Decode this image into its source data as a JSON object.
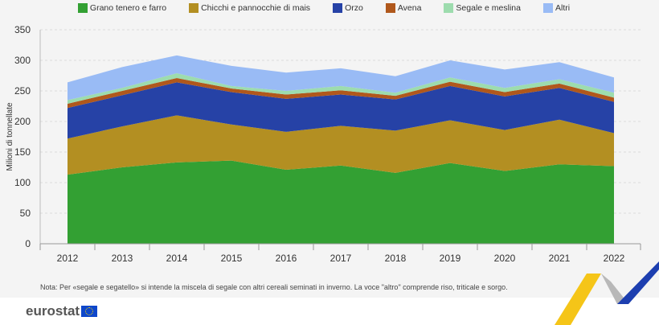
{
  "chart_data": {
    "type": "area",
    "stacked": true,
    "categories": [
      "2012",
      "2013",
      "2014",
      "2015",
      "2016",
      "2017",
      "2018",
      "2019",
      "2020",
      "2021",
      "2022"
    ],
    "ylabel": "Milioni di tonnellate",
    "ylim": [
      0,
      350
    ],
    "yticks": [
      0,
      50,
      100,
      150,
      200,
      250,
      300,
      350
    ],
    "grid": true,
    "legend": "top",
    "series": [
      {
        "name": "Grano tenero e farro",
        "color": "#33a033",
        "values": [
          113,
          125,
          133,
          136,
          121,
          128,
          116,
          132,
          119,
          130,
          127
        ]
      },
      {
        "name": "Chicchi e pannocchie di mais",
        "color": "#b38f22",
        "values": [
          59,
          67,
          77,
          59,
          62,
          65,
          69,
          70,
          67,
          73,
          54
        ]
      },
      {
        "name": "Orzo",
        "color": "#2642a6",
        "values": [
          50,
          51,
          54,
          53,
          54,
          51,
          51,
          56,
          55,
          52,
          51
        ]
      },
      {
        "name": "Avena",
        "color": "#b0581c",
        "values": [
          7,
          7,
          7,
          6,
          7,
          7,
          6,
          7,
          7,
          7,
          7
        ]
      },
      {
        "name": "Segale e meslina",
        "color": "#9ddcae",
        "values": [
          6,
          5,
          8,
          4,
          6,
          7,
          5,
          7,
          7,
          7,
          8
        ]
      },
      {
        "name": "Altri",
        "color": "#99bbf5",
        "values": [
          29,
          34,
          29,
          33,
          30,
          29,
          27,
          28,
          30,
          28,
          25
        ]
      }
    ]
  },
  "note": "Nota: Per «segale e segatello» si intende la miscela di segale con altri cereali seminati in inverno. La voce \"altro\" comprende riso, triticale e sorgo.",
  "logo": "eurostat"
}
